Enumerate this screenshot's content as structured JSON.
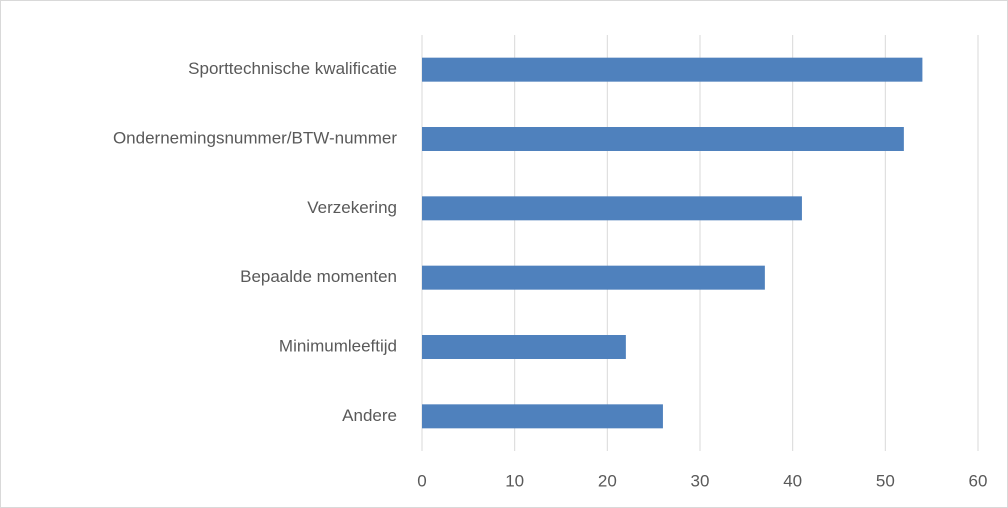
{
  "chart_data": {
    "type": "bar",
    "orientation": "horizontal",
    "categories": [
      "Sporttechnische kwalificatie",
      "Ondernemingsnummer/BTW-nummer",
      "Verzekering",
      "Bepaalde momenten",
      "Minimumleeftijd",
      "Andere"
    ],
    "values": [
      54,
      52,
      41,
      37,
      22,
      26
    ],
    "color": "#4f81bd",
    "xlim": [
      0,
      60
    ],
    "xticks": [
      0,
      10,
      20,
      30,
      40,
      50,
      60
    ],
    "grid": true
  }
}
